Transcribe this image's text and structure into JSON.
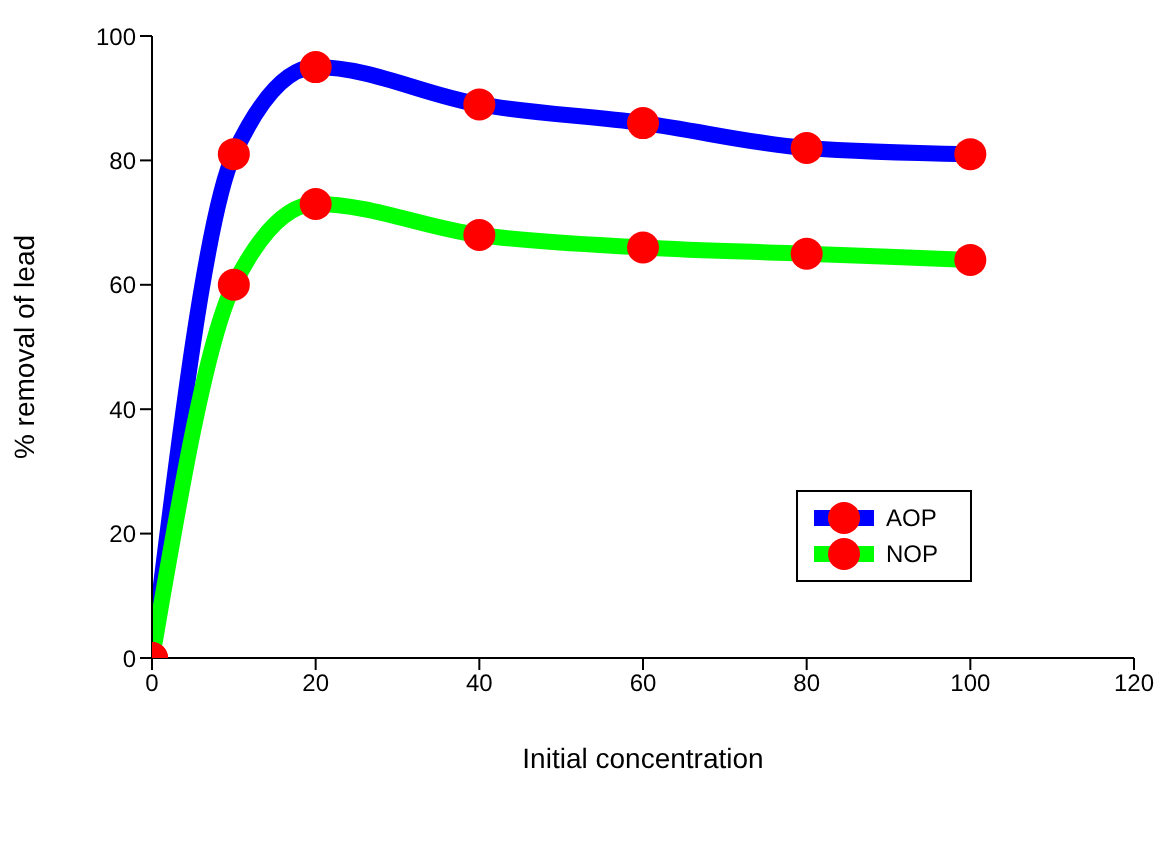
{
  "chart_data": {
    "type": "line",
    "xlabel": "Initial concentration",
    "ylabel": "% removal of lead",
    "x": [
      0,
      10,
      20,
      40,
      60,
      80,
      100
    ],
    "series": [
      {
        "name": "AOP",
        "color": "#0000ff",
        "values": [
          0,
          81,
          95,
          89,
          86,
          82,
          81
        ],
        "colors": [
          "#ff0000",
          "#ff0000",
          "#ff0000",
          "#ff0000",
          "#ff0000",
          "#ff0000",
          "#ff0000"
        ]
      },
      {
        "name": "NOP",
        "color": "#00ff00",
        "values": [
          0,
          60,
          73,
          68,
          66,
          65,
          64
        ],
        "colors": [
          "#ff0000",
          "#ff0000",
          "#ff0000",
          "#ff0000",
          "#ff0000",
          "#ff0000",
          "#ff0000"
        ]
      }
    ],
    "xlim": [
      0,
      120
    ],
    "xticks": [
      0,
      20,
      40,
      60,
      80,
      100,
      120
    ],
    "ylim": [
      0,
      100
    ],
    "yticks": [
      0,
      20,
      40,
      60,
      80,
      100
    ],
    "grid": false,
    "legend": "right",
    "marker": "circle",
    "line_style": "solid"
  }
}
